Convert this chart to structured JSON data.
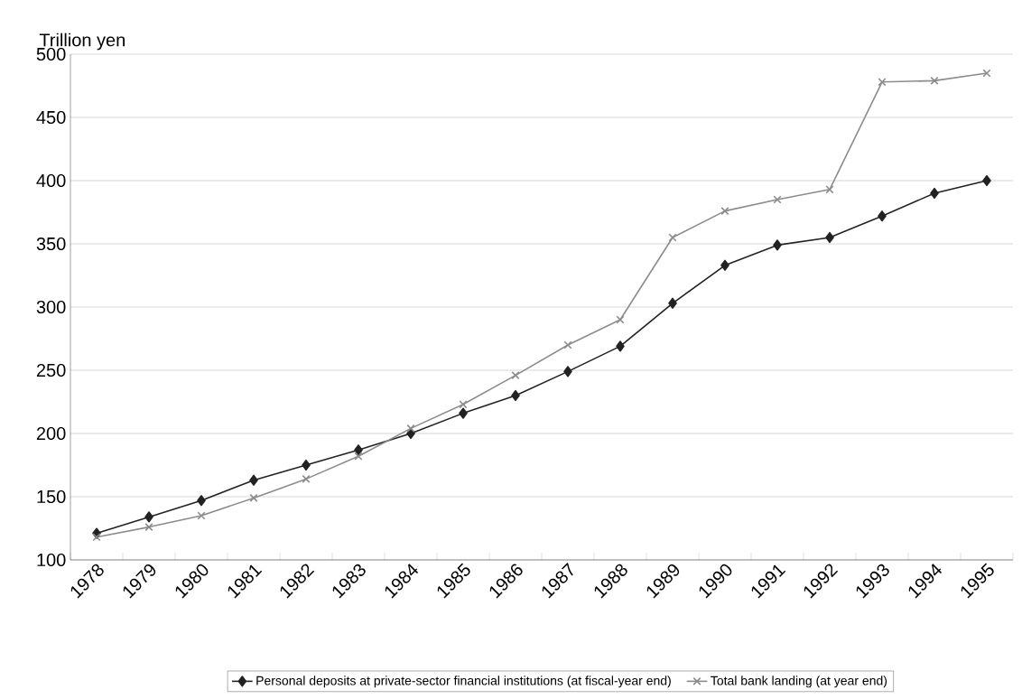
{
  "chart_data": {
    "type": "line",
    "ylabel": "Trillion yen",
    "categories": [
      "1978",
      "1979",
      "1980",
      "1981",
      "1982",
      "1983",
      "1984",
      "1985",
      "1986",
      "1987",
      "1988",
      "1989",
      "1990",
      "1991",
      "1992",
      "1993",
      "1994",
      "1995"
    ],
    "series": [
      {
        "name": "Personal deposits at private-sector financial institutions (at fiscal-year end)",
        "color": "#222222",
        "marker": "diamond",
        "values": [
          121,
          134,
          147,
          163,
          175,
          187,
          200,
          216,
          230,
          249,
          269,
          303,
          333,
          349,
          355,
          372,
          390,
          400
        ]
      },
      {
        "name": "Total bank landing (at year end)",
        "color": "#8c8c8c",
        "marker": "cross",
        "values": [
          118,
          126,
          135,
          149,
          164,
          182,
          204,
          223,
          246,
          270,
          290,
          355,
          376,
          385,
          393,
          478,
          479,
          485
        ]
      }
    ],
    "ylim": [
      100,
      500
    ],
    "yticks": [
      100,
      150,
      200,
      250,
      300,
      350,
      400,
      450,
      500
    ],
    "grid": "y",
    "legend": "bottom",
    "line_style": "solid"
  }
}
